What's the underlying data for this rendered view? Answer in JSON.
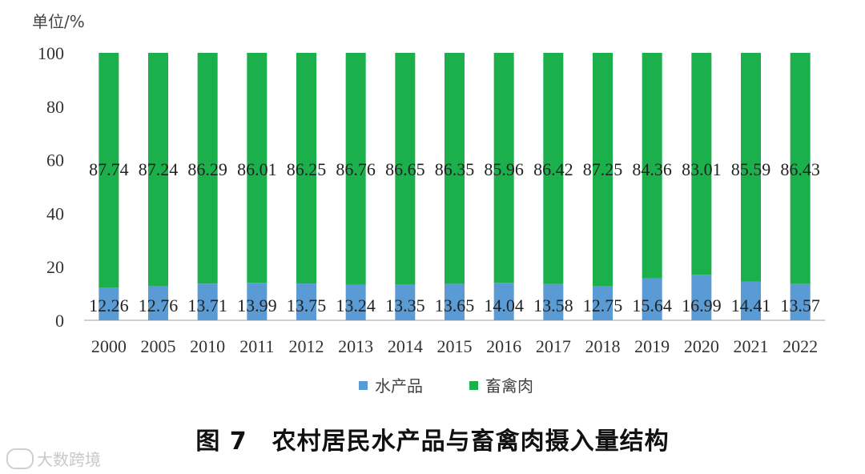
{
  "unit_label": "单位/%",
  "caption": "图 7　农村居民水产品与畜禽肉摄入量结构",
  "watermark": "大数跨境",
  "chart_data": {
    "type": "bar",
    "stacked": true,
    "categories": [
      "2000",
      "2005",
      "2010",
      "2011",
      "2012",
      "2013",
      "2014",
      "2015",
      "2016",
      "2017",
      "2018",
      "2019",
      "2020",
      "2021",
      "2022"
    ],
    "series": [
      {
        "name": "水产品",
        "color": "#5b9bd5",
        "values": [
          12.26,
          12.76,
          13.71,
          13.99,
          13.75,
          13.24,
          13.35,
          13.65,
          14.04,
          13.58,
          12.75,
          15.64,
          16.99,
          14.41,
          13.57
        ]
      },
      {
        "name": "畜禽肉",
        "color": "#1bb04b",
        "values": [
          87.74,
          87.24,
          86.29,
          86.01,
          86.25,
          86.76,
          86.65,
          86.35,
          85.96,
          86.42,
          87.25,
          84.36,
          83.01,
          85.59,
          86.43
        ]
      }
    ],
    "data_labels": [
      [
        "12.26",
        "12.76",
        "13.71",
        "13.99",
        "13.75",
        "13.24",
        "13.35",
        "13.65",
        "14.04",
        "13.58",
        "12.75",
        "15.64",
        "16.99",
        "14.41",
        "13.57"
      ],
      [
        "87.74",
        "87.24",
        "86.29",
        "86.01",
        "86.25",
        "86.76",
        "86.65",
        "86.35",
        "85.96",
        "86.42",
        "87.25",
        "84.36",
        "83.01",
        "85.59",
        "86.43"
      ]
    ],
    "y_ticks": [
      "0",
      "20",
      "40",
      "60",
      "80",
      "100"
    ],
    "ylim": [
      0,
      100
    ],
    "grid": false,
    "legend_position": "bottom"
  }
}
